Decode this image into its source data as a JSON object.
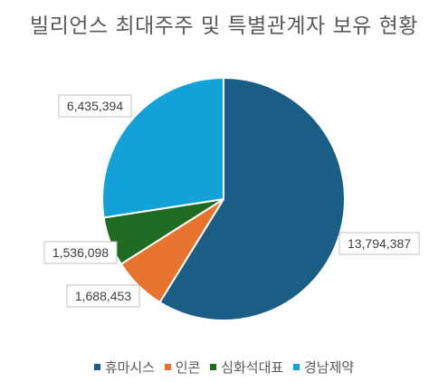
{
  "chart_data": {
    "type": "pie",
    "title": "빌리언스 최대주주 및 특별관계자 보유 현황",
    "categories": [
      "휴마시스",
      "인콘",
      "심화석대표",
      "경남제약"
    ],
    "values": [
      13794387,
      1688453,
      1536098,
      6435394
    ],
    "labels": [
      "13,794,387",
      "1,688,453",
      "1,536,098",
      "6,435,394"
    ],
    "colors": [
      "#1a5e86",
      "#e8732f",
      "#1f6b22",
      "#12a2d8"
    ],
    "legend_position": "bottom",
    "start": "12 o'clock",
    "direction": "clockwise"
  }
}
